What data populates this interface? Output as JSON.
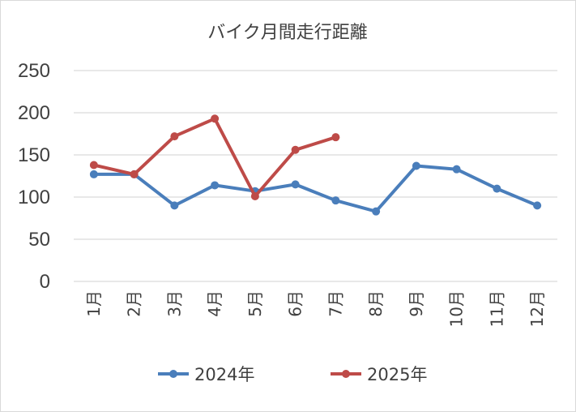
{
  "chart_data": {
    "type": "line",
    "title": "バイク月間走行距離",
    "categories": [
      "1月",
      "2月",
      "3月",
      "4月",
      "5月",
      "6月",
      "7月",
      "8月",
      "9月",
      "10月",
      "11月",
      "12月"
    ],
    "series": [
      {
        "name": "2024年",
        "color": "#4a7ebb",
        "values": [
          127,
          127,
          90,
          114,
          107,
          115,
          96,
          83,
          137,
          133,
          110,
          90
        ]
      },
      {
        "name": "2025年",
        "color": "#be4b48",
        "values": [
          138,
          127,
          172,
          193,
          101,
          156,
          171,
          null,
          null,
          null,
          null,
          null
        ]
      }
    ],
    "ylim": [
      0,
      250
    ],
    "yticks": [
      0,
      50,
      100,
      150,
      200,
      250
    ],
    "grid": true,
    "legend_position": "bottom",
    "xlabel": "",
    "ylabel": ""
  }
}
